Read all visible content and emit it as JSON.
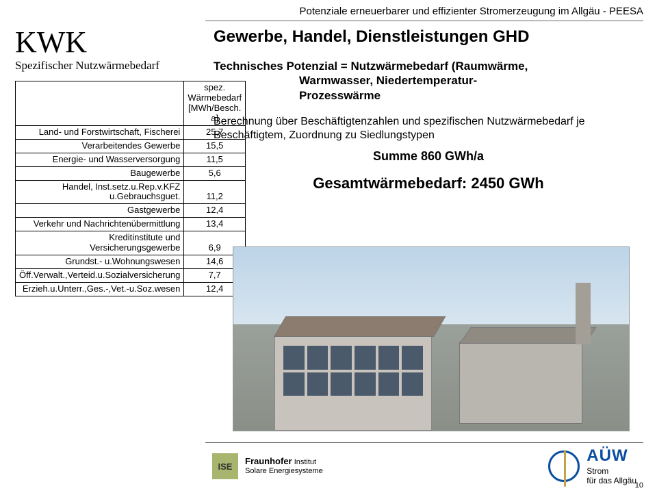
{
  "header": "Potenziale erneuerbarer und effizienter Stromerzeugung im Allgäu - PEESA",
  "kwk": {
    "title": "KWK",
    "subtitle": "Spezifischer Nutzwärmebedarf"
  },
  "table": {
    "col_header": "spez. Wärmebedarf [MWh/Besch. a]",
    "rows": [
      {
        "label": "Land- und Forstwirtschaft, Fischerei",
        "value": "25,7"
      },
      {
        "label": "Verarbeitendes Gewerbe",
        "value": "15,5"
      },
      {
        "label": "Energie- und Wasserversorgung",
        "value": "11,5"
      },
      {
        "label": "Baugewerbe",
        "value": "5,6"
      },
      {
        "label": "Handel, Inst.setz.u.Rep.v.KFZ u.Gebrauchsguet.",
        "value": "11,2"
      },
      {
        "label": "Gastgewerbe",
        "value": "12,4"
      },
      {
        "label": "Verkehr und Nachrichtenübermittlung",
        "value": "13,4"
      },
      {
        "label": "Kreditinstitute und Versicherungsgewerbe",
        "value": "6,9"
      },
      {
        "label": "Grundst.- u.Wohnungswesen",
        "value": "14,6"
      },
      {
        "label": "Öff.Verwalt.,Verteid.u.Sozialversicherung",
        "value": "7,7"
      },
      {
        "label": "Erzieh.u.Unterr.,Ges.-,Vet.-u.Soz.wesen",
        "value": "12,4"
      }
    ]
  },
  "right": {
    "title": "Gewerbe, Handel, Dienstleistungen GHD",
    "tech_line1": "Technisches Potenzial = Nutzwärmebedarf (Raumwärme,",
    "tech_line2": "Warmwasser, Niedertemperatur-",
    "tech_line3": "Prozesswärme",
    "calc": "Berechnung über Beschäftigtenzahlen und spezifischen Nutzwärmebedarf je Beschäftigtem, Zuordnung zu Siedlungstypen",
    "summe": "Summe 860 GWh/a",
    "gesamt": "Gesamtwärmebedarf:  2450 GWh"
  },
  "footer": {
    "ise_box": "ISE",
    "ise_l1": "Fraunhofer",
    "ise_l2": "Institut",
    "ise_l3": "Solare Energiesysteme",
    "auw_big": "AÜW",
    "auw_l1": "Strom",
    "auw_l2": "für das Allgäu"
  },
  "page": "10"
}
